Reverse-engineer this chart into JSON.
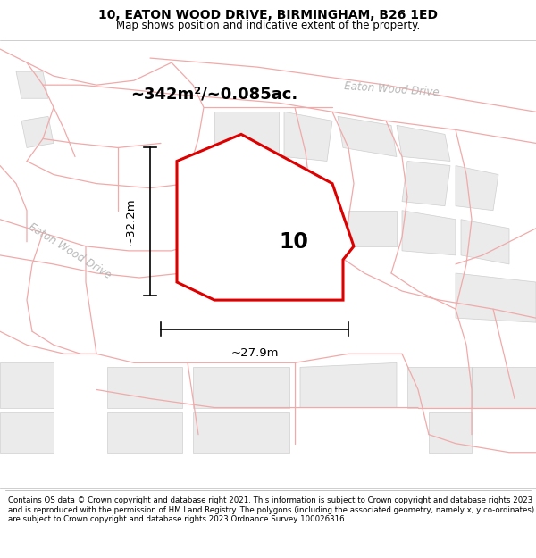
{
  "title": "10, EATON WOOD DRIVE, BIRMINGHAM, B26 1ED",
  "subtitle": "Map shows position and indicative extent of the property.",
  "footer": "Contains OS data © Crown copyright and database right 2021. This information is subject to Crown copyright and database rights 2023 and is reproduced with the permission of HM Land Registry. The polygons (including the associated geometry, namely x, y co-ordinates) are subject to Crown copyright and database rights 2023 Ordnance Survey 100026316.",
  "area_label": "~342m²/~0.085ac.",
  "number_label": "10",
  "dim_width": "~27.9m",
  "dim_height": "~32.2m",
  "bg_color": "#ffffff",
  "highlight_color": "#dd0000",
  "road_color": "#f0aaaa",
  "parcel_fill": "#e8e8e8",
  "parcel_edge": "#c8c8c8",
  "road_label_color": "#b8b8b8",
  "road_label1": "Eaton Wood Drive",
  "road_label2": "Eaton Wood Drive",
  "figsize": [
    6.0,
    6.25
  ],
  "dpi": 100
}
